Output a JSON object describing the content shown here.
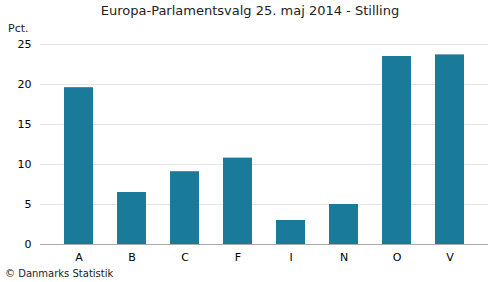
{
  "chart_data": {
    "type": "bar",
    "title": "Europa-Parlamentsvalg 25. maj 2014 - Stilling",
    "categories": [
      "A",
      "B",
      "C",
      "F",
      "I",
      "N",
      "O",
      "V"
    ],
    "values": [
      19.6,
      6.5,
      9.1,
      10.8,
      3.0,
      5.0,
      23.5,
      23.7
    ],
    "color": "#1a7a9a",
    "ylabel": "Pct.",
    "ylim": [
      0,
      25
    ],
    "yticks": [
      0,
      5,
      10,
      15,
      20,
      25
    ],
    "grid": true,
    "footer": "© Danmarks Statistik"
  }
}
